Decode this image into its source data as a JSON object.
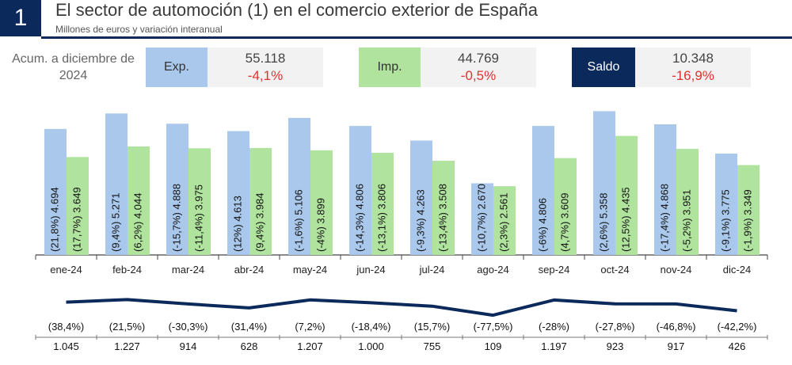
{
  "header": {
    "number": "1",
    "title": "El sector de automoción (1) en el comercio exterior de España",
    "subtitle": "Millones de euros y variación interanual"
  },
  "summary": {
    "period_label_line1": "Acum. a diciembre de",
    "period_label_line2": "2024",
    "exp": {
      "label": "Exp.",
      "value": "55.118",
      "change": "-4,1%"
    },
    "imp": {
      "label": "Imp.",
      "value": "44.769",
      "change": "-0,5%"
    },
    "saldo": {
      "label": "Saldo",
      "value": "10.348",
      "change": "-16,9%"
    }
  },
  "colors": {
    "exp": "#a9c8ec",
    "imp": "#b0e39d",
    "saldo": "#0b2a5b",
    "negative": "#e03030"
  },
  "chart_data": [
    {
      "type": "bar",
      "categories": [
        "ene-24",
        "feb-24",
        "mar-24",
        "abr-24",
        "may-24",
        "jun-24",
        "jul-24",
        "ago-24",
        "sep-24",
        "oct-24",
        "nov-24",
        "dic-24"
      ],
      "series": [
        {
          "values": [
            4694,
            5271,
            4888,
            4613,
            5106,
            4806,
            4263,
            2670,
            4806,
            5358,
            4868,
            3775
          ],
          "labels": [
            "4.694",
            "5.271",
            "4.888",
            "4.613",
            "5.106",
            "4.806",
            "4.263",
            "2.670",
            "4.806",
            "5.358",
            "4.868",
            "3.775"
          ],
          "changes": [
            "(21,8%)",
            "(9,4%)",
            "(-15,7%)",
            "(12%)",
            "(-1,6%)",
            "(-14,3%)",
            "(-9,3%)",
            "(-10,7%)",
            "(-6%)",
            "(2,6%)",
            "(-17,4%)",
            "(-9,1%)"
          ]
        },
        {
          "values": [
            3649,
            4044,
            3975,
            3984,
            3899,
            3806,
            3508,
            2561,
            3609,
            4435,
            3951,
            3349
          ],
          "labels": [
            "3.649",
            "4.044",
            "3.975",
            "3.984",
            "3.899",
            "3.806",
            "3.508",
            "2.561",
            "3.609",
            "4.435",
            "3.951",
            "3.349"
          ],
          "changes": [
            "(17,7%)",
            "(6,2%)",
            "(-11,4%)",
            "(9,4%)",
            "(-4%)",
            "(-13,1%)",
            "(-13,4%)",
            "(2,3%)",
            "(4,7%)",
            "(12,5%)",
            "(-5,2%)",
            "(-1,9%)"
          ]
        }
      ]
    },
    {
      "type": "line",
      "categories": [
        "ene-24",
        "feb-24",
        "mar-24",
        "abr-24",
        "may-24",
        "jun-24",
        "jul-24",
        "ago-24",
        "sep-24",
        "oct-24",
        "nov-24",
        "dic-24"
      ],
      "values": [
        1045,
        1227,
        914,
        628,
        1207,
        1000,
        755,
        109,
        1197,
        923,
        917,
        426
      ],
      "labels": [
        "1.045",
        "1.227",
        "914",
        "628",
        "1.207",
        "1.000",
        "755",
        "109",
        "1.197",
        "923",
        "917",
        "426"
      ],
      "changes": [
        "(38,4%)",
        "(21,5%)",
        "(-30,3%)",
        "(31,4%)",
        "(7,2%)",
        "(-18,4%)",
        "(15,7%)",
        "(-77,5%)",
        "(-28%)",
        "(-27,8%)",
        "(-46,8%)",
        "(-42,2%)"
      ]
    }
  ]
}
